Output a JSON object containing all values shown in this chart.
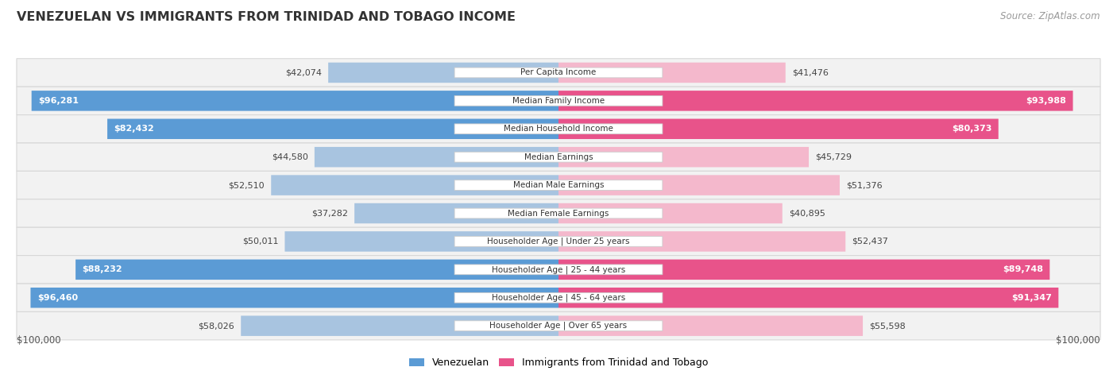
{
  "title": "VENEZUELAN VS IMMIGRANTS FROM TRINIDAD AND TOBAGO INCOME",
  "source": "Source: ZipAtlas.com",
  "categories": [
    "Per Capita Income",
    "Median Family Income",
    "Median Household Income",
    "Median Earnings",
    "Median Male Earnings",
    "Median Female Earnings",
    "Householder Age | Under 25 years",
    "Householder Age | 25 - 44 years",
    "Householder Age | 45 - 64 years",
    "Householder Age | Over 65 years"
  ],
  "venezuelan_values": [
    42074,
    96281,
    82432,
    44580,
    52510,
    37282,
    50011,
    88232,
    96460,
    58026
  ],
  "trinidad_values": [
    41476,
    93988,
    80373,
    45729,
    51376,
    40895,
    52437,
    89748,
    91347,
    55598
  ],
  "venezuelan_labels": [
    "$42,074",
    "$96,281",
    "$82,432",
    "$44,580",
    "$52,510",
    "$37,282",
    "$50,011",
    "$88,232",
    "$96,460",
    "$58,026"
  ],
  "trinidad_labels": [
    "$41,476",
    "$93,988",
    "$80,373",
    "$45,729",
    "$51,376",
    "$40,895",
    "$52,437",
    "$89,748",
    "$91,347",
    "$55,598"
  ],
  "max_value": 100000,
  "venezuelan_color_light": "#a8c4e0",
  "venezuelan_color_dark": "#5b9bd5",
  "trinidad_color_light": "#f4b8cc",
  "trinidad_color_dark": "#e8538a",
  "background_color": "#ffffff",
  "row_bg_color": "#f2f2f2",
  "row_border_color": "#d8d8d8",
  "label_color_dark": "#444444",
  "label_color_white": "#ffffff",
  "legend_venezuelan": "Venezuelan",
  "legend_trinidad": "Immigrants from Trinidad and Tobago",
  "x_label_left": "$100,000",
  "x_label_right": "$100,000",
  "dark_threshold": 75000
}
